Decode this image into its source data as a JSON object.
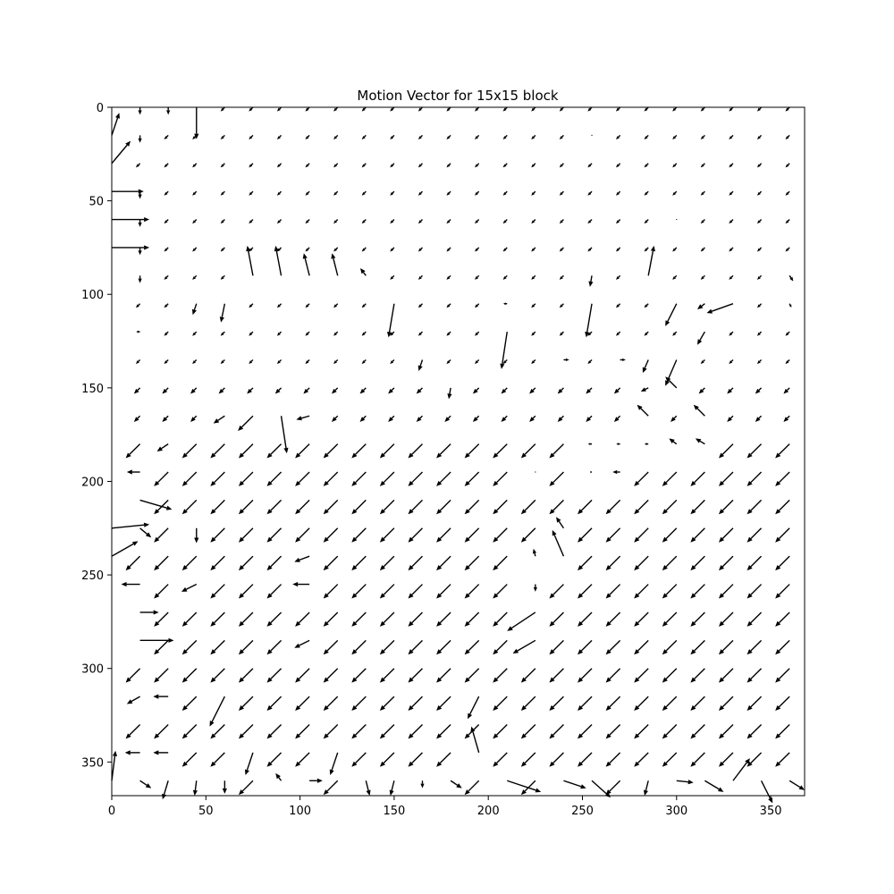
{
  "chart_data": {
    "type": "quiver",
    "title": "Motion Vector for 15x15 block",
    "xlabel": "",
    "ylabel": "",
    "xlim": [
      0,
      368
    ],
    "ylim": [
      368,
      0
    ],
    "y_inverted": true,
    "grid": false,
    "x_ticks": [
      0,
      50,
      100,
      150,
      200,
      250,
      300,
      350
    ],
    "y_ticks": [
      0,
      50,
      100,
      150,
      200,
      250,
      300,
      350
    ],
    "grid_step": 15,
    "grid_start": 0,
    "vector_color": "#000000",
    "default_vector": [
      -4,
      4
    ],
    "vectors": [
      {
        "x": 0,
        "y": 15,
        "u": 4,
        "v": -12
      },
      {
        "x": 0,
        "y": 30,
        "u": 10,
        "v": -12
      },
      {
        "x": 0,
        "y": 45,
        "u": 17,
        "v": 0
      },
      {
        "x": 0,
        "y": 60,
        "u": 20,
        "v": 0
      },
      {
        "x": 0,
        "y": 75,
        "u": 20,
        "v": 0
      },
      {
        "x": 0,
        "y": 225,
        "u": 20,
        "v": -2
      },
      {
        "x": 0,
        "y": 240,
        "u": 14,
        "v": -8
      },
      {
        "x": 0,
        "y": 360,
        "u": 2,
        "v": -16
      },
      {
        "x": 15,
        "y": 0,
        "u": 0,
        "v": 4
      },
      {
        "x": 15,
        "y": 15,
        "u": 0,
        "v": 4
      },
      {
        "x": 15,
        "y": 45,
        "u": 0,
        "v": 4
      },
      {
        "x": 15,
        "y": 60,
        "u": 0,
        "v": 4
      },
      {
        "x": 15,
        "y": 75,
        "u": 0,
        "v": 4
      },
      {
        "x": 15,
        "y": 90,
        "u": 0,
        "v": 4
      },
      {
        "x": 15,
        "y": 120,
        "u": -2,
        "v": 0
      },
      {
        "x": 15,
        "y": 195,
        "u": -7,
        "v": 0
      },
      {
        "x": 15,
        "y": 210,
        "u": 17,
        "v": 5
      },
      {
        "x": 15,
        "y": 225,
        "u": 6,
        "v": 5
      },
      {
        "x": 15,
        "y": 255,
        "u": -10,
        "v": 0
      },
      {
        "x": 15,
        "y": 270,
        "u": 10,
        "v": 0
      },
      {
        "x": 15,
        "y": 285,
        "u": 18,
        "v": 0
      },
      {
        "x": 15,
        "y": 315,
        "u": -7,
        "v": 4
      },
      {
        "x": 15,
        "y": 345,
        "u": -8,
        "v": 0
      },
      {
        "x": 15,
        "y": 360,
        "u": 6,
        "v": 4
      },
      {
        "x": 30,
        "y": 0,
        "u": 0,
        "v": 4
      },
      {
        "x": 30,
        "y": 180,
        "u": -6,
        "v": 4
      },
      {
        "x": 30,
        "y": 315,
        "u": -8,
        "v": 0
      },
      {
        "x": 30,
        "y": 345,
        "u": -8,
        "v": 0
      },
      {
        "x": 30,
        "y": 360,
        "u": -3,
        "v": 10
      },
      {
        "x": 45,
        "y": 0,
        "u": 0,
        "v": 17
      },
      {
        "x": 45,
        "y": 105,
        "u": -2,
        "v": 6
      },
      {
        "x": 45,
        "y": 225,
        "u": 0,
        "v": 8
      },
      {
        "x": 45,
        "y": 255,
        "u": -8,
        "v": 4
      },
      {
        "x": 45,
        "y": 360,
        "u": -1,
        "v": 8
      },
      {
        "x": 60,
        "y": 105,
        "u": -2,
        "v": 10
      },
      {
        "x": 60,
        "y": 165,
        "u": -6,
        "v": 4
      },
      {
        "x": 60,
        "y": 315,
        "u": -8,
        "v": 16
      },
      {
        "x": 60,
        "y": 360,
        "u": 0,
        "v": 7
      },
      {
        "x": 75,
        "y": 90,
        "u": -3,
        "v": -16
      },
      {
        "x": 75,
        "y": 165,
        "u": -8,
        "v": 8
      },
      {
        "x": 75,
        "y": 345,
        "u": -4,
        "v": 12
      },
      {
        "x": 90,
        "y": 90,
        "u": -3,
        "v": -16
      },
      {
        "x": 90,
        "y": 165,
        "u": 3,
        "v": 20
      },
      {
        "x": 90,
        "y": 360,
        "u": -3,
        "v": -4
      },
      {
        "x": 105,
        "y": 90,
        "u": -3,
        "v": -12
      },
      {
        "x": 105,
        "y": 165,
        "u": -7,
        "v": 2
      },
      {
        "x": 105,
        "y": 240,
        "u": -8,
        "v": 3
      },
      {
        "x": 105,
        "y": 255,
        "u": -9,
        "v": 0
      },
      {
        "x": 105,
        "y": 285,
        "u": -8,
        "v": 4
      },
      {
        "x": 105,
        "y": 360,
        "u": 7,
        "v": 0
      },
      {
        "x": 120,
        "y": 90,
        "u": -3,
        "v": -12
      },
      {
        "x": 120,
        "y": 345,
        "u": -4,
        "v": 12
      },
      {
        "x": 135,
        "y": 90,
        "u": -3,
        "v": -4
      },
      {
        "x": 135,
        "y": 360,
        "u": 2,
        "v": 8
      },
      {
        "x": 150,
        "y": 105,
        "u": -3,
        "v": 18
      },
      {
        "x": 150,
        "y": 360,
        "u": -2,
        "v": 8
      },
      {
        "x": 165,
        "y": 135,
        "u": -2,
        "v": 6
      },
      {
        "x": 165,
        "y": 360,
        "u": 0,
        "v": 4
      },
      {
        "x": 180,
        "y": 150,
        "u": -1,
        "v": 6
      },
      {
        "x": 180,
        "y": 360,
        "u": 6,
        "v": 4
      },
      {
        "x": 195,
        "y": 315,
        "u": -6,
        "v": 12
      },
      {
        "x": 195,
        "y": 345,
        "u": -4,
        "v": -14
      },
      {
        "x": 210,
        "y": 105,
        "u": -2,
        "v": 0
      },
      {
        "x": 210,
        "y": 120,
        "u": -3,
        "v": 20
      },
      {
        "x": 210,
        "y": 360,
        "u": 18,
        "v": 6
      },
      {
        "x": 225,
        "y": 195,
        "u": 0,
        "v": 0
      },
      {
        "x": 225,
        "y": 240,
        "u": -1,
        "v": -4
      },
      {
        "x": 225,
        "y": 255,
        "u": 0,
        "v": 4
      },
      {
        "x": 225,
        "y": 270,
        "u": -15,
        "v": 10
      },
      {
        "x": 225,
        "y": 285,
        "u": -12,
        "v": 7
      },
      {
        "x": 240,
        "y": 135,
        "u": 3,
        "v": 0
      },
      {
        "x": 240,
        "y": 225,
        "u": -4,
        "v": -6
      },
      {
        "x": 240,
        "y": 240,
        "u": -6,
        "v": -14
      },
      {
        "x": 240,
        "y": 360,
        "u": 12,
        "v": 4
      },
      {
        "x": 255,
        "y": 15,
        "u": 0,
        "v": 0
      },
      {
        "x": 255,
        "y": 90,
        "u": -1,
        "v": 6
      },
      {
        "x": 255,
        "y": 105,
        "u": -3,
        "v": 18
      },
      {
        "x": 255,
        "y": 180,
        "u": -2,
        "v": 0
      },
      {
        "x": 255,
        "y": 195,
        "u": -1,
        "v": 0
      },
      {
        "x": 255,
        "y": 360,
        "u": 10,
        "v": 9
      },
      {
        "x": 270,
        "y": 135,
        "u": 3,
        "v": 0
      },
      {
        "x": 270,
        "y": 180,
        "u": -2,
        "v": 0
      },
      {
        "x": 270,
        "y": 195,
        "u": -4,
        "v": 0
      },
      {
        "x": 285,
        "y": 90,
        "u": 3,
        "v": -16
      },
      {
        "x": 285,
        "y": 135,
        "u": -3,
        "v": 7
      },
      {
        "x": 285,
        "y": 150,
        "u": -4,
        "v": 2
      },
      {
        "x": 285,
        "y": 165,
        "u": -6,
        "v": -6
      },
      {
        "x": 285,
        "y": 180,
        "u": -2,
        "v": 0
      },
      {
        "x": 285,
        "y": 360,
        "u": -2,
        "v": 8
      },
      {
        "x": 300,
        "y": 60,
        "u": 0,
        "v": 0
      },
      {
        "x": 300,
        "y": 105,
        "u": -6,
        "v": 12
      },
      {
        "x": 300,
        "y": 135,
        "u": -6,
        "v": 14
      },
      {
        "x": 300,
        "y": 150,
        "u": -6,
        "v": -6
      },
      {
        "x": 300,
        "y": 180,
        "u": -4,
        "v": -3
      },
      {
        "x": 300,
        "y": 360,
        "u": 9,
        "v": 1
      },
      {
        "x": 315,
        "y": 105,
        "u": -4,
        "v": 3
      },
      {
        "x": 315,
        "y": 120,
        "u": -4,
        "v": 7
      },
      {
        "x": 315,
        "y": 165,
        "u": -6,
        "v": -6
      },
      {
        "x": 315,
        "y": 180,
        "u": -5,
        "v": -3
      },
      {
        "x": 315,
        "y": 360,
        "u": 10,
        "v": 6
      },
      {
        "x": 330,
        "y": 105,
        "u": -14,
        "v": 5
      },
      {
        "x": 330,
        "y": 360,
        "u": 9,
        "v": -12
      },
      {
        "x": 345,
        "y": 360,
        "u": 6,
        "v": 12
      },
      {
        "x": 360,
        "y": 90,
        "u": 2,
        "v": 3
      },
      {
        "x": 360,
        "y": 105,
        "u": 1,
        "v": 2
      },
      {
        "x": 360,
        "y": 360,
        "u": 8,
        "v": 5
      }
    ]
  }
}
